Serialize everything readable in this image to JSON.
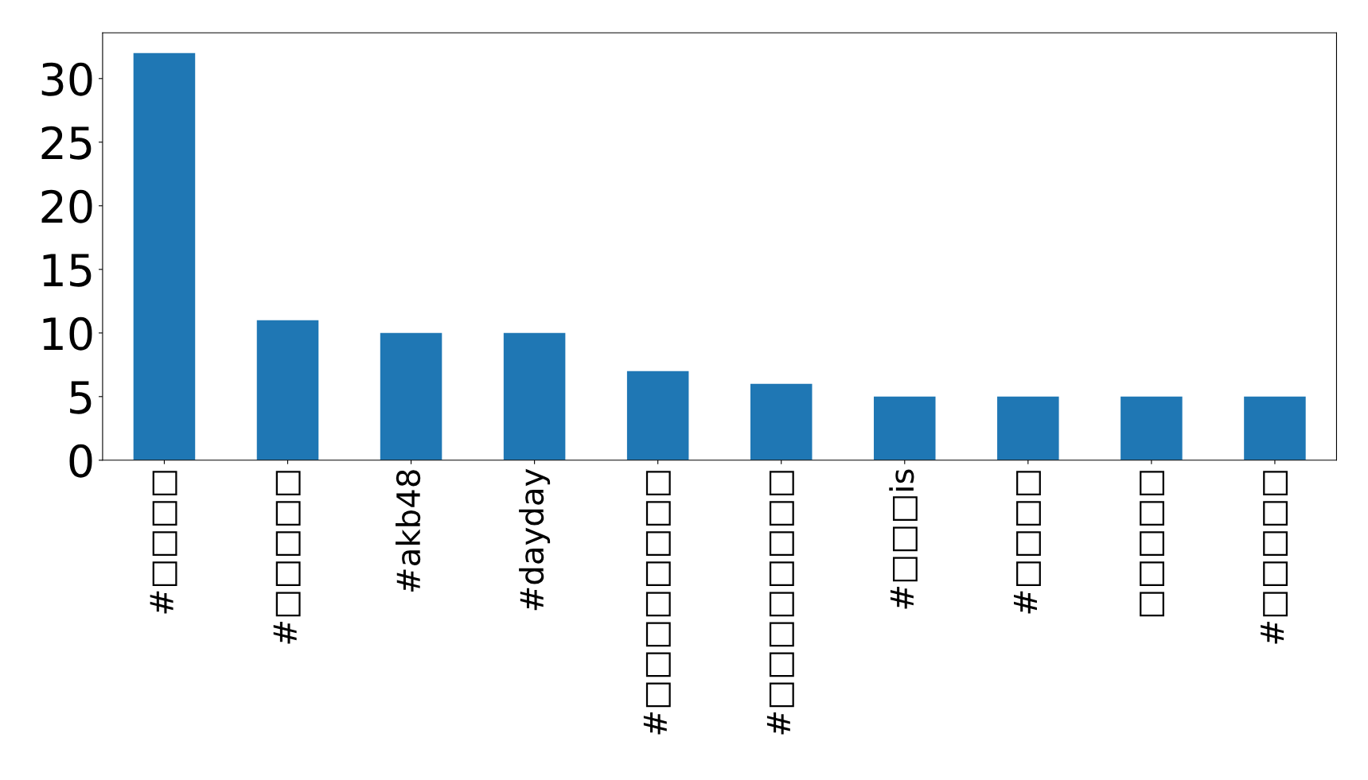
{
  "chart_data": {
    "type": "bar",
    "categories": [
      "#□□□□",
      "#□□□□□",
      "#akb48",
      "#dayday",
      "#□□□□□□□□",
      "#□□□□□□□□",
      "#□□□is",
      "#□□□□",
      "□□□□□",
      "#□□□□□"
    ],
    "values": [
      32,
      11,
      10,
      10,
      7,
      6,
      5,
      5,
      5,
      5
    ],
    "color": "#1f77b4",
    "ylim": [
      0,
      33.6
    ],
    "yticks": [
      0,
      5,
      10,
      15,
      20,
      25,
      30
    ],
    "grid": false
  }
}
